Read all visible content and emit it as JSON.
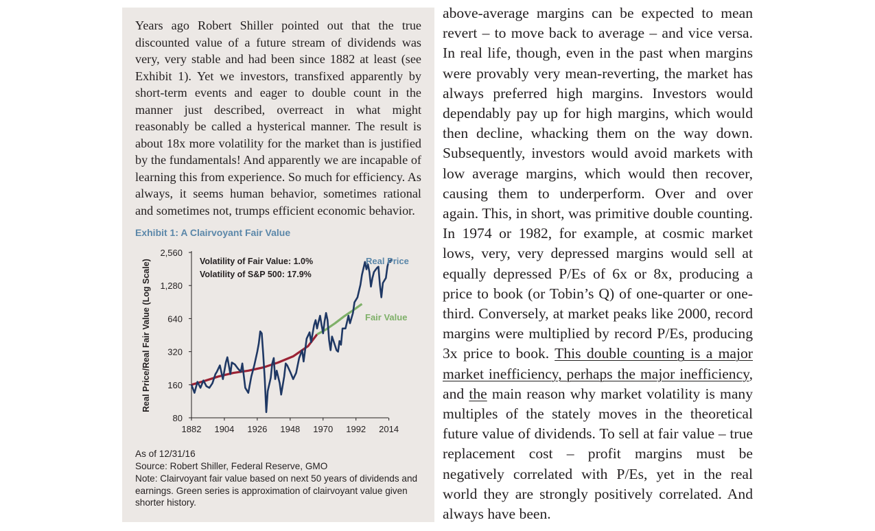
{
  "sidebar": {
    "paragraph": "Years ago Robert Shiller pointed out that the true discounted value of a future stream of dividends was very, very stable and had been since 1882 at least (see Exhibit 1). Yet we investors, transfixed apparently by short-term events and eager to double count in the manner just described, overreact in what might reasonably be called a hysterical manner. The result is about 18x more volatility for the market than is justified by the fundamentals! And apparently we are incapable of learning this from experience. So much for efficiency. As always, it seems human behavior, sometimes rational and sometimes not, trumps efficient economic behavior.",
    "exhibit_title": "Exhibit 1: A Clairvoyant Fair Value",
    "as_of": "As of 12/31/16",
    "source": "Source: Robert Shiller, Federal Reserve, GMO",
    "note": "Note: Clairvoyant fair value based on next 50 years of dividends and earnings. Green series is approximation of clairvoyant value given shorter history."
  },
  "main": {
    "text_before": "above-average margins can be expected to mean revert – to move back to average – and vice versa. In real life, though, even in the past when margins were provably very mean-reverting, the market has always preferred high margins. Investors would dependably pay up for high margins, which would then decline, whacking them on the way down. Subsequently, investors would avoid markets with low average margins, which would then recover, causing them to underperform. Over and over again. This, in short, was primitive double counting. In 1974 or 1982, for example, at cosmic market lows, very, very depressed margins would sell at equally depressed P/Es of 6x or 8x, producing a price to book (or Tobin’s Q) of one-quarter or one-third. Conversely, at market peaks like 2000, record margins were multiplied by record P/Es, producing 3x price to book. ",
    "underlined_1": "This double counting is a major market inefficiency, perhaps the major inefficiency",
    "text_mid": ", and ",
    "underlined_2": "the",
    "text_after": " main reason why market volatility is many multiples of the stately moves in the theoretical future value of dividends. To sell at fair value – true replacement cost – profit margins must be negatively correlated with P/Es, yet in the real world they are strongly positively correlated. And always have been."
  },
  "chart_data": {
    "type": "line",
    "ylabel": "Real Price/Real Fair Value (Log Scale)",
    "y_scale": "log2",
    "ylim": [
      80,
      2560
    ],
    "yticks": [
      80,
      160,
      320,
      640,
      1280,
      2560
    ],
    "ytick_labels": [
      "80",
      "160",
      "320",
      "640",
      "1,280",
      "2,560"
    ],
    "xlim": [
      1882,
      2016
    ],
    "xticks": [
      1882,
      1904,
      1926,
      1948,
      1970,
      1992,
      2014
    ],
    "xtick_labels": [
      "1882",
      "1904",
      "1926",
      "1948",
      "1970",
      "1992",
      "2014"
    ],
    "annotations": [
      "Volatility of Fair Value: 1.0%",
      "Volatility of S&P 500: 17.9%"
    ],
    "colors": {
      "real_price": "#1f3864",
      "fair_value_red": "#9b2335",
      "fair_value_green": "#7fb069",
      "title_blue": "#5b87a9"
    },
    "series": [
      {
        "name": "Real Price",
        "x": [
          1882,
          1884,
          1886,
          1888,
          1890,
          1892,
          1894,
          1896,
          1898,
          1899,
          1901,
          1903,
          1905,
          1906,
          1908,
          1909,
          1911,
          1913,
          1915,
          1916,
          1918,
          1920,
          1922,
          1924,
          1926,
          1927,
          1928,
          1929,
          1930,
          1931,
          1932,
          1933,
          1935,
          1936,
          1937,
          1938,
          1939,
          1941,
          1942,
          1944,
          1945,
          1946,
          1948,
          1950,
          1952,
          1954,
          1956,
          1957,
          1959,
          1961,
          1962,
          1964,
          1965,
          1966,
          1967,
          1968,
          1969,
          1970,
          1971,
          1972,
          1973,
          1974,
          1975,
          1976,
          1977,
          1979,
          1980,
          1981,
          1982,
          1983,
          1985,
          1987,
          1988,
          1990,
          1991,
          1993,
          1995,
          1996,
          1998,
          1999,
          2000,
          2001,
          2002,
          2003,
          2004,
          2006,
          2007,
          2008,
          2009,
          2010,
          2012,
          2013,
          2014,
          2015,
          2016
        ],
        "values": [
          160,
          135,
          170,
          150,
          175,
          155,
          150,
          165,
          200,
          210,
          240,
          180,
          255,
          285,
          200,
          255,
          245,
          225,
          210,
          250,
          150,
          135,
          190,
          240,
          320,
          380,
          490,
          470,
          300,
          180,
          90,
          140,
          185,
          250,
          280,
          180,
          215,
          165,
          130,
          190,
          250,
          240,
          210,
          180,
          205,
          280,
          330,
          260,
          420,
          480,
          390,
          560,
          620,
          520,
          600,
          680,
          560,
          470,
          600,
          720,
          620,
          410,
          330,
          440,
          400,
          330,
          320,
          400,
          370,
          520,
          520,
          680,
          580,
          720,
          900,
          1000,
          1300,
          1600,
          2100,
          1800,
          2000,
          1700,
          1250,
          1500,
          1700,
          1850,
          1900,
          1300,
          1000,
          1350,
          1500,
          1900,
          2150,
          2100,
          2250
        ]
      },
      {
        "name": "Fair Value",
        "x": [
          1882,
          1890,
          1900,
          1910,
          1920,
          1930,
          1940,
          1950,
          1960,
          1966
        ],
        "values": [
          160,
          172,
          190,
          205,
          215,
          230,
          255,
          290,
          360,
          460
        ]
      },
      {
        "name": "Fair Value",
        "x": [
          1966,
          1972,
          1978,
          1984,
          1990,
          1996
        ],
        "values": [
          460,
          510,
          580,
          670,
          760,
          870
        ]
      }
    ]
  }
}
